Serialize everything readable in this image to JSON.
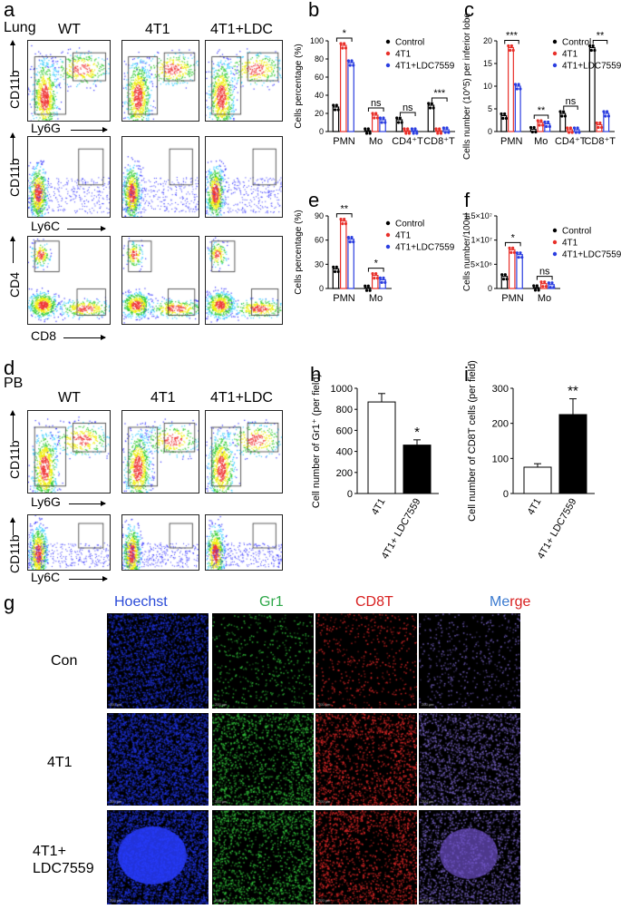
{
  "panels": {
    "a": "a",
    "b": "b",
    "c": "c",
    "d": "d",
    "e": "e",
    "f": "f",
    "g": "g",
    "h": "h",
    "i": "i"
  },
  "panel_a": {
    "tissue": "Lung",
    "groups": [
      "WT",
      "4T1",
      "4T1+LDC"
    ],
    "rows": [
      {
        "ylabel": "CD11b",
        "xlabel": "Ly6G",
        "gates": [
          [
            "2.43",
            "86.5"
          ],
          [
            "65.0",
            "13.9"
          ],
          [
            "44.5",
            "49.3"
          ]
        ]
      },
      {
        "ylabel": "CD11b",
        "xlabel": "Ly6C",
        "gates": [
          [
            "1.30"
          ],
          [
            "14.3"
          ],
          [
            "7.24"
          ]
        ]
      },
      {
        "ylabel": "CD4",
        "xlabel": "CD8",
        "gates": [
          [
            "8.64",
            "26.4"
          ],
          [
            "1.35",
            "3.49"
          ],
          [
            "4.99",
            "10.6"
          ]
        ]
      }
    ]
  },
  "panel_d": {
    "tissue": "PB",
    "groups": [
      "WT",
      "4T1",
      "4T1+LDC"
    ],
    "rows": [
      {
        "ylabel": "CD11b",
        "xlabel": "Ly6G",
        "gates": [
          [
            "75.5",
            "22.8"
          ],
          [
            "4.69",
            "92.4"
          ],
          [
            "42.7",
            "54.9"
          ]
        ]
      },
      {
        "ylabel": "CD11b",
        "xlabel": "Ly6C",
        "gates": [
          [
            "1.06"
          ],
          [
            "22.0"
          ],
          [
            "19.6"
          ]
        ]
      }
    ]
  },
  "legend": {
    "control": "Control",
    "t41": "4T1",
    "ldc": "4T1+LDC7559"
  },
  "colors": {
    "control": "#000000",
    "t41": "#e8302a",
    "ldc": "#2b3ee0",
    "merge_blue": "#1a3ad8",
    "green": "#3cb83c",
    "red": "#e02020"
  },
  "chart_data": [
    {
      "id": "b",
      "type": "bar",
      "ylabel": "Cells percentage (%)",
      "ylim": [
        0,
        100
      ],
      "yticks": [
        "0",
        "20",
        "40",
        "60",
        "80",
        "100"
      ],
      "categories": [
        "PMN",
        "Mo",
        "CD4⁺T",
        "CD8⁺T"
      ],
      "series": [
        {
          "name": "Control",
          "values": [
            27,
            1,
            13,
            29
          ]
        },
        {
          "name": "4T1",
          "values": [
            95,
            18,
            1,
            1
          ]
        },
        {
          "name": "4T1+LDC7559",
          "values": [
            76,
            13,
            1,
            2
          ]
        }
      ],
      "sig": [
        "*",
        "ns",
        "ns",
        "***"
      ]
    },
    {
      "id": "c",
      "type": "bar",
      "ylabel": "Cells number (10^5) per inferior lobe",
      "ylim": [
        0,
        20
      ],
      "yticks": [
        "0",
        "5",
        "10",
        "15",
        "20"
      ],
      "categories": [
        "PMN",
        "Mo",
        "CD4⁺T",
        "CD8⁺T"
      ],
      "series": [
        {
          "name": "Control",
          "values": [
            3.5,
            0.5,
            4,
            18.5
          ]
        },
        {
          "name": "4T1",
          "values": [
            18.5,
            2,
            0.4,
            1.5
          ]
        },
        {
          "name": "4T1+LDC7559",
          "values": [
            10,
            1.7,
            0.4,
            4
          ]
        }
      ],
      "sig": [
        "***",
        "**",
        "ns",
        "**"
      ]
    },
    {
      "id": "e",
      "type": "bar",
      "ylabel": "Cells percentage (%)",
      "ylim": [
        0,
        100
      ],
      "yticks": [
        "0",
        "30",
        "60",
        "90"
      ],
      "categories": [
        "PMN",
        "Mo"
      ],
      "series": [
        {
          "name": "Control",
          "values": [
            27,
            1
          ]
        },
        {
          "name": "4T1",
          "values": [
            93,
            18
          ]
        },
        {
          "name": "4T1+LDC7559",
          "values": [
            68,
            12
          ]
        }
      ],
      "sig": [
        "**",
        "*"
      ]
    },
    {
      "id": "f",
      "type": "bar",
      "ylabel": "Cells number/100ul",
      "ylim": [
        0,
        15000000
      ],
      "yticks": [
        "0",
        "5×10⁶",
        "1×10⁷",
        "1.5×10⁷"
      ],
      "categories": [
        "PMN",
        "Mo"
      ],
      "series": [
        {
          "name": "Control",
          "values": [
            2500000,
            200000
          ]
        },
        {
          "name": "4T1",
          "values": [
            8000000,
            1000000
          ]
        },
        {
          "name": "4T1+LDC7559",
          "values": [
            7000000,
            800000
          ]
        }
      ],
      "sig": [
        "*",
        "ns"
      ]
    },
    {
      "id": "h",
      "type": "bar",
      "ylabel": "Cell number of Gr1⁺ (per field)",
      "ylim": [
        0,
        1000
      ],
      "yticks": [
        "0",
        "200",
        "400",
        "600",
        "800",
        "1000"
      ],
      "categories": [
        "4T1",
        "4T1+ LDC7559"
      ],
      "values": [
        870,
        460
      ],
      "errors": [
        80,
        50
      ],
      "sig": "*"
    },
    {
      "id": "i",
      "type": "bar",
      "ylabel": "Cell number of CD8T cells (per field)",
      "ylim": [
        0,
        300
      ],
      "yticks": [
        "0",
        "100",
        "200",
        "300"
      ],
      "categories": [
        "4T1",
        "4T1+ LDC7559"
      ],
      "values": [
        75,
        225
      ],
      "errors": [
        10,
        45
      ],
      "sig": "**"
    }
  ],
  "panel_g": {
    "columns": [
      {
        "label": "Hoechst",
        "color": "#2a4ad8"
      },
      {
        "label": "Gr1",
        "color": "#2fa84a"
      },
      {
        "label": "CD8T",
        "color": "#d82020"
      },
      {
        "label_me": "Me",
        "label_rge": "rge"
      }
    ],
    "rows": [
      "Con",
      "4T1",
      "4T1+\nLDC7559"
    ],
    "row_line1": [
      "Con",
      "4T1",
      "4T1+"
    ],
    "row_line2": [
      "",
      "",
      "LDC7559"
    ],
    "scale": "200 μm"
  }
}
